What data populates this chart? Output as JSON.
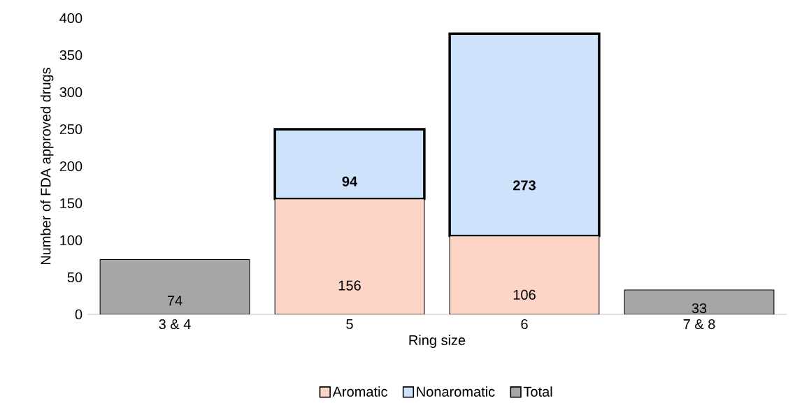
{
  "chart_data": {
    "type": "bar",
    "stacked": true,
    "xlabel": "Ring size",
    "ylabel": "Number of FDA approved drugs",
    "categories": [
      "3 & 4",
      "5",
      "6",
      "7 & 8"
    ],
    "series": [
      {
        "name": "Aromatic",
        "color": "#fcd5c6",
        "values": [
          null,
          156,
          106,
          null
        ]
      },
      {
        "name": "Nonaromatic",
        "color": "#cfe2fb",
        "values": [
          null,
          94,
          273,
          null
        ]
      },
      {
        "name": "Total",
        "color": "#a6a6a6",
        "values": [
          74,
          null,
          null,
          33
        ]
      }
    ],
    "ylim": [
      0,
      400
    ],
    "yticks": [
      0,
      50,
      100,
      150,
      200,
      250,
      300,
      350,
      400
    ],
    "data_labels": true,
    "legend": "bottom",
    "grid": false
  }
}
